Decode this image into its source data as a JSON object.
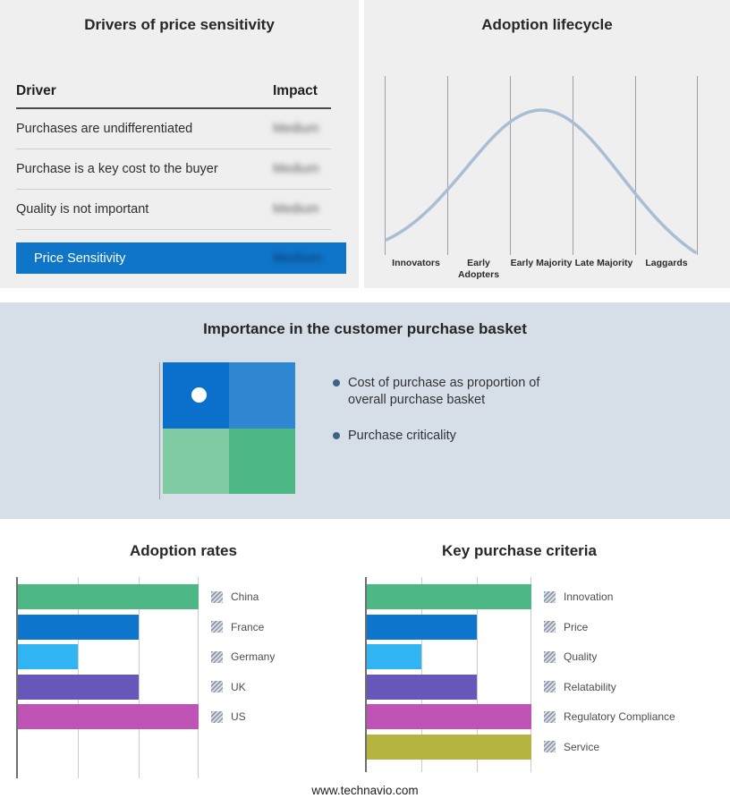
{
  "drivers_panel": {
    "title": "Drivers of price sensitivity",
    "table": {
      "headers": {
        "driver": "Driver",
        "impact": "Impact"
      },
      "rows": [
        {
          "driver": "Purchases are undifferentiated",
          "impact": "Medium"
        },
        {
          "driver": "Purchase is a key cost to the buyer",
          "impact": "Medium"
        },
        {
          "driver": "Quality is not important",
          "impact": "Medium"
        }
      ]
    },
    "summary": {
      "label": "Price Sensitivity",
      "impact": "Medium"
    },
    "accent_color": "#0f75c8"
  },
  "basket_panel": {
    "title": "Importance in the customer purchase basket",
    "bullets": [
      "Cost of purchase as proportion of overall purchase basket",
      "Purchase criticality"
    ],
    "quadrant_colors": {
      "top_left": "#0a70cb",
      "top_right": "#2f87d2",
      "bottom_left": "#80cba3",
      "bottom_right": "#4db885"
    }
  },
  "footer": {
    "website": "www.technavio.com"
  },
  "chart_data": [
    {
      "type": "line",
      "title": "Adoption lifecycle",
      "shape": "bell-curve",
      "categories": [
        "Innovators",
        "Early Adopters",
        "Early Majority",
        "Late Majority",
        "Laggards"
      ],
      "values_relative": [
        0.1,
        0.55,
        1.0,
        0.55,
        0.05
      ],
      "description": "Bell curve peaking over the Early Majority stage",
      "line_color": "#a9bdd5",
      "grid": "vertical",
      "legend_position": "none"
    },
    {
      "type": "bar",
      "orientation": "horizontal",
      "title": "Adoption rates",
      "categories": [
        "China",
        "France",
        "Germany",
        "UK",
        "US"
      ],
      "values": [
        3,
        2,
        1,
        2,
        3
      ],
      "xlim": [
        0,
        3
      ],
      "xlabel": "",
      "ylabel": "",
      "colors": [
        "#4db885",
        "#0e76cc",
        "#30b4f2",
        "#6657b8",
        "#bf52b5"
      ],
      "grid": "vertical",
      "legend_position": "right"
    },
    {
      "type": "bar",
      "orientation": "horizontal",
      "title": "Key purchase criteria",
      "categories": [
        "Innovation",
        "Price",
        "Quality",
        "Relatability",
        "Regulatory Compliance",
        "Service"
      ],
      "values": [
        3,
        2,
        1,
        2,
        3,
        3
      ],
      "xlim": [
        0,
        3
      ],
      "xlabel": "",
      "ylabel": "",
      "colors": [
        "#4db885",
        "#0e76cc",
        "#30b4f2",
        "#6657b8",
        "#bf52b5",
        "#b5b43f"
      ],
      "grid": "vertical",
      "legend_position": "right"
    }
  ]
}
